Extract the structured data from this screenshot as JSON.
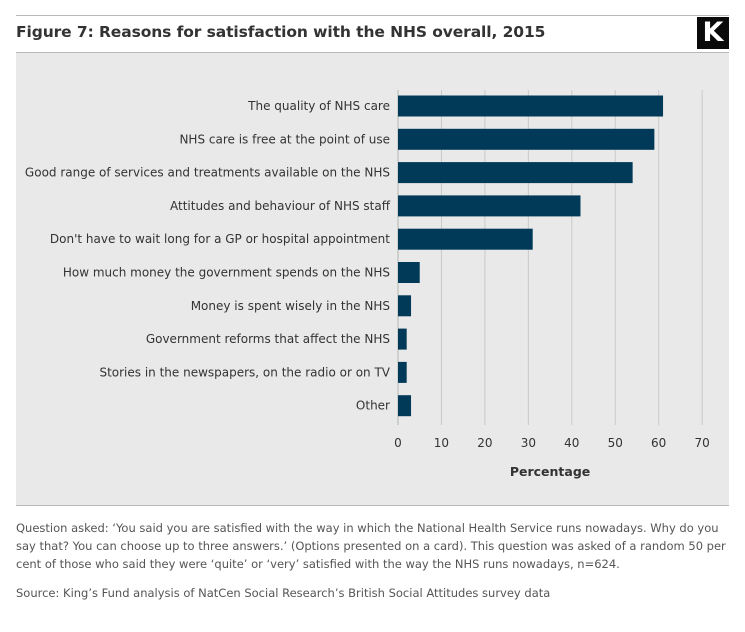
{
  "figure": {
    "title": "Figure 7: Reasons for satisfaction with the NHS overall, 2015",
    "logo_text": "K",
    "note": "Question asked: ‘You said you are satisfied with the way in which the National Health Service runs nowadays. Why do you say that? You can choose up to three answers.’ (Options presented on a card). This question was asked of a random 50 per cent of those who said they were ‘quite’ or ‘very’ satisfied with the way the NHS runs nowadays, n=624.",
    "source": "Source: King’s Fund analysis of NatCen Social Research’s British Social Attitudes survey data"
  },
  "colors": {
    "bar": "#003a58",
    "panel_background": "#e8e9e8",
    "gridline": "#c9cac9",
    "text": "#333333"
  },
  "chart_data": {
    "type": "bar",
    "orientation": "horizontal",
    "categories": [
      "The quality of NHS care",
      "NHS care is free at the point of use",
      "Good range of services and treatments available on the NHS",
      "Attitudes and behaviour of NHS staff",
      "Don't have to wait long for a GP or hospital appointment",
      "How much money the government spends on the NHS",
      "Money is spent wisely in the NHS",
      "Government reforms that affect the NHS",
      "Stories in the newspapers, on the radio or on TV",
      "Other"
    ],
    "values": [
      61,
      59,
      54,
      42,
      31,
      5,
      3,
      2,
      2,
      3
    ],
    "xlabel": "Percentage",
    "ylabel": "",
    "xlim": [
      0,
      70
    ],
    "xticks": [
      0,
      10,
      20,
      30,
      40,
      50,
      60,
      70
    ],
    "grid": true
  }
}
